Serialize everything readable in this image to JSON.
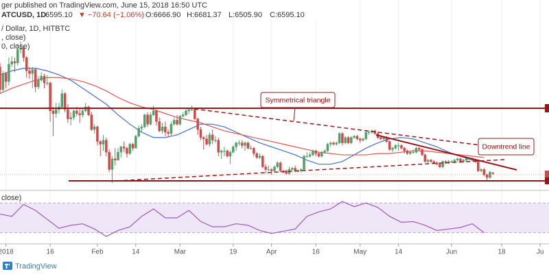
{
  "chart_data": {
    "type": "candlestick",
    "title": "ger published on TradingView.com, June 15, 2018 16:50 UTC",
    "symbol": "ATCUSD, 1D",
    "last": "6595.10",
    "change": "▼ −70.64 (−1.06%)",
    "ohlc_labels": [
      "O:6666.90",
      "H:6681.37",
      "L:6505.90",
      "C:6595.10"
    ],
    "legend": [
      "/ Dollar, 1D, HITBTC",
      ", close)",
      "0, close)"
    ],
    "annotations": [
      "Symmetrical triangle",
      "Downtrend line"
    ],
    "brand": "TradingView",
    "up_color": "#53a06a",
    "down_color": "#d04a4a",
    "xlim": [
      "2017-12-30",
      "2018-07-04"
    ],
    "ylim": [
      5330,
      19620
    ],
    "xticks": [
      {
        "value": "2018-01-01",
        "label": "2018"
      },
      {
        "value": "2018-01-16",
        "label": "16"
      },
      {
        "value": "2018-02-01",
        "label": "Feb"
      },
      {
        "value": "2018-02-14",
        "label": "14"
      },
      {
        "value": "2018-03-01",
        "label": "Mar"
      },
      {
        "value": "2018-03-19",
        "label": "19"
      },
      {
        "value": "2018-04-01",
        "label": "Apr"
      },
      {
        "value": "2018-04-16",
        "label": "16"
      },
      {
        "value": "2018-05-01",
        "label": "May"
      },
      {
        "value": "2018-05-14",
        "label": "14"
      },
      {
        "value": "2018-06-01",
        "label": "Jun"
      },
      {
        "value": "2018-06-18",
        "label": "18"
      },
      {
        "value": "2018-07-01",
        "label": "Ju"
      }
    ],
    "grid": true,
    "x": [
      "2017-12-30",
      "2017-12-31",
      "2018-01-01",
      "2018-01-02",
      "2018-01-03",
      "2018-01-04",
      "2018-01-05",
      "2018-01-06",
      "2018-01-07",
      "2018-01-08",
      "2018-01-09",
      "2018-01-10",
      "2018-01-11",
      "2018-01-12",
      "2018-01-13",
      "2018-01-14",
      "2018-01-15",
      "2018-01-16",
      "2018-01-17",
      "2018-01-18",
      "2018-01-19",
      "2018-01-20",
      "2018-01-21",
      "2018-01-22",
      "2018-01-23",
      "2018-01-24",
      "2018-01-25",
      "2018-01-26",
      "2018-01-27",
      "2018-01-28",
      "2018-01-29",
      "2018-01-30",
      "2018-01-31",
      "2018-02-01",
      "2018-02-02",
      "2018-02-03",
      "2018-02-04",
      "2018-02-05",
      "2018-02-06",
      "2018-02-07",
      "2018-02-08",
      "2018-02-09",
      "2018-02-10",
      "2018-02-11",
      "2018-02-12",
      "2018-02-13",
      "2018-02-14",
      "2018-02-15",
      "2018-02-16",
      "2018-02-17",
      "2018-02-18",
      "2018-02-19",
      "2018-02-20",
      "2018-02-21",
      "2018-02-22",
      "2018-02-23",
      "2018-02-24",
      "2018-02-25",
      "2018-02-26",
      "2018-02-27",
      "2018-02-28",
      "2018-03-01",
      "2018-03-02",
      "2018-03-03",
      "2018-03-04",
      "2018-03-05",
      "2018-03-06",
      "2018-03-07",
      "2018-03-08",
      "2018-03-09",
      "2018-03-10",
      "2018-03-11",
      "2018-03-12",
      "2018-03-13",
      "2018-03-14",
      "2018-03-15",
      "2018-03-16",
      "2018-03-17",
      "2018-03-18",
      "2018-03-19",
      "2018-03-20",
      "2018-03-21",
      "2018-03-22",
      "2018-03-23",
      "2018-03-24",
      "2018-03-25",
      "2018-03-26",
      "2018-03-27",
      "2018-03-28",
      "2018-03-29",
      "2018-03-30",
      "2018-03-31",
      "2018-04-01",
      "2018-04-02",
      "2018-04-03",
      "2018-04-04",
      "2018-04-05",
      "2018-04-06",
      "2018-04-07",
      "2018-04-08",
      "2018-04-09",
      "2018-04-10",
      "2018-04-11",
      "2018-04-12",
      "2018-04-13",
      "2018-04-14",
      "2018-04-15",
      "2018-04-16",
      "2018-04-17",
      "2018-04-18",
      "2018-04-19",
      "2018-04-20",
      "2018-04-21",
      "2018-04-22",
      "2018-04-23",
      "2018-04-24",
      "2018-04-25",
      "2018-04-26",
      "2018-04-27",
      "2018-04-28",
      "2018-04-29",
      "2018-04-30",
      "2018-05-01",
      "2018-05-02",
      "2018-05-03",
      "2018-05-04",
      "2018-05-05",
      "2018-05-06",
      "2018-05-07",
      "2018-05-08",
      "2018-05-09",
      "2018-05-10",
      "2018-05-11",
      "2018-05-12",
      "2018-05-13",
      "2018-05-14",
      "2018-05-15",
      "2018-05-16",
      "2018-05-17",
      "2018-05-18",
      "2018-05-19",
      "2018-05-20",
      "2018-05-21",
      "2018-05-22",
      "2018-05-23",
      "2018-05-24",
      "2018-05-25",
      "2018-05-26",
      "2018-05-27",
      "2018-05-28",
      "2018-05-29",
      "2018-05-30",
      "2018-05-31",
      "2018-06-01",
      "2018-06-02",
      "2018-06-03",
      "2018-06-04",
      "2018-06-05",
      "2018-06-06",
      "2018-06-07",
      "2018-06-08",
      "2018-06-09",
      "2018-06-10",
      "2018-06-11",
      "2018-06-12",
      "2018-06-13",
      "2018-06-14",
      "2018-06-15"
    ],
    "open": [
      14600,
      12900,
      14100,
      13500,
      14800,
      15000,
      14900,
      15900,
      16000,
      15300,
      14300,
      14100,
      14400,
      13100,
      13600,
      13900,
      13400,
      13400,
      11300,
      11100,
      11400,
      11600,
      12600,
      11400,
      10700,
      10800,
      11300,
      11100,
      11000,
      11300,
      11600,
      11000,
      9900,
      10100,
      9000,
      8800,
      9100,
      8200,
      6900,
      7700,
      7600,
      8200,
      8600,
      8500,
      8100,
      8800,
      8500,
      9400,
      10000,
      10100,
      11000,
      10300,
      11000,
      11300,
      10500,
      9800,
      10100,
      9700,
      9600,
      10300,
      10600,
      10300,
      10900,
      11000,
      11300,
      11400,
      11400,
      10700,
      9900,
      9300,
      9200,
      8800,
      9500,
      9100,
      9100,
      8200,
      8300,
      8300,
      7900,
      8200,
      8600,
      8900,
      8900,
      8700,
      8900,
      8500,
      8500,
      8100,
      7800,
      7900,
      7100,
      6900,
      6900,
      6800,
      7100,
      7400,
      6800,
      6800,
      6600,
      6900,
      7000,
      6800,
      6800,
      6900,
      7900,
      7900,
      8000,
      8300,
      8100,
      7900,
      8200,
      8300,
      8800,
      8900,
      8800,
      8900,
      9600,
      8900,
      9300,
      8900,
      9300,
      9400,
      9200,
      9100,
      9200,
      9700,
      9700,
      9800,
      9600,
      9300,
      9200,
      9300,
      9000,
      8400,
      8500,
      8700,
      8700,
      8500,
      8300,
      8100,
      8200,
      8200,
      8500,
      8400,
      8000,
      7500,
      7600,
      7500,
      7400,
      7300,
      7100,
      7500,
      7400,
      7500,
      7500,
      7600,
      7700,
      7500,
      7600,
      7700,
      7700,
      7600,
      7500,
      6800,
      6900,
      6500,
      6300,
      6666.9
    ],
    "high": [
      14900,
      14300,
      14200,
      15300,
      15400,
      15300,
      16300,
      16500,
      16200,
      15400,
      14600,
      14600,
      14500,
      13900,
      14200,
      14100,
      14000,
      13500,
      11600,
      11900,
      11900,
      12900,
      12700,
      11800,
      11200,
      11400,
      11600,
      11500,
      11500,
      11900,
      11700,
      11200,
      10300,
      10200,
      9100,
      9500,
      9300,
      8400,
      7900,
      8500,
      8500,
      8700,
      9000,
      8600,
      8900,
      8900,
      9500,
      10200,
      10300,
      11100,
      11200,
      11200,
      11700,
      11400,
      10800,
      10400,
      10500,
      9900,
      10500,
      10800,
      11000,
      11000,
      11200,
      11500,
      11500,
      11700,
      11500,
      10800,
      10100,
      9400,
      9500,
      9700,
      9900,
      9400,
      9300,
      8400,
      8600,
      8400,
      8300,
      8700,
      9000,
      9100,
      9100,
      9000,
      9000,
      8700,
      8600,
      8200,
      8100,
      8000,
      7300,
      7200,
      7000,
      7200,
      7500,
      7500,
      6900,
      6900,
      7100,
      7100,
      7200,
      6900,
      7000,
      8000,
      8200,
      8200,
      8400,
      8400,
      8200,
      8300,
      8400,
      8900,
      9000,
      9000,
      9000,
      9700,
      9700,
      9400,
      9400,
      9400,
      9500,
      9500,
      9300,
      9300,
      9800,
      9800,
      9900,
      9900,
      9700,
      9500,
      9400,
      9400,
      9100,
      8600,
      8800,
      8900,
      8800,
      8600,
      8400,
      8300,
      8400,
      8600,
      8600,
      8500,
      8100,
      7700,
      7700,
      7600,
      7500,
      7400,
      7600,
      7600,
      7600,
      7600,
      7700,
      7800,
      7800,
      7700,
      7800,
      7800,
      7800,
      7700,
      7600,
      7000,
      7000,
      6600,
      6800,
      6681.37
    ],
    "low": [
      12600,
      12700,
      13000,
      13200,
      14600,
      14200,
      14700,
      15600,
      15000,
      13800,
      13700,
      13000,
      12700,
      12900,
      13500,
      13000,
      13200,
      10500,
      9400,
      10800,
      11100,
      11500,
      11200,
      10400,
      10200,
      10600,
      10900,
      10400,
      10800,
      11200,
      10900,
      9800,
      9600,
      8700,
      7900,
      8300,
      7900,
      6700,
      5900,
      7200,
      7600,
      7800,
      8200,
      7800,
      8000,
      8300,
      8500,
      9300,
      9700,
      10000,
      10100,
      10200,
      10900,
      10200,
      9700,
      9600,
      9400,
      9300,
      9400,
      10200,
      10200,
      10200,
      10800,
      10900,
      11100,
      11300,
      10600,
      9500,
      9100,
      8400,
      8700,
      8600,
      8800,
      8900,
      7900,
      7700,
      7900,
      7800,
      7300,
      8100,
      8300,
      8700,
      8500,
      8300,
      8400,
      8400,
      7900,
      7700,
      7700,
      7000,
      6600,
      6800,
      6500,
      6700,
      7000,
      6700,
      6600,
      6500,
      6500,
      6800,
      6700,
      6700,
      6700,
      6800,
      7800,
      7800,
      7900,
      7900,
      7800,
      7800,
      8100,
      8200,
      8600,
      8700,
      8700,
      8800,
      8700,
      8800,
      8800,
      8800,
      9200,
      9100,
      8900,
      9000,
      9100,
      9500,
      9600,
      9500,
      9200,
      9100,
      9000,
      8900,
      8300,
      8200,
      8400,
      8300,
      8400,
      8100,
      8000,
      8000,
      8100,
      8100,
      8300,
      7900,
      7400,
      7300,
      7400,
      7300,
      7200,
      7000,
      7000,
      7300,
      7300,
      7400,
      7400,
      7500,
      7400,
      7400,
      7500,
      7600,
      7500,
      7400,
      6700,
      6700,
      6400,
      6100,
      6200,
      6505.9
    ],
    "close": [
      12900,
      14100,
      13500,
      14800,
      15000,
      14900,
      15900,
      16000,
      15300,
      14300,
      14100,
      14400,
      13100,
      13600,
      13900,
      13400,
      13400,
      11300,
      11100,
      11400,
      11600,
      12600,
      11400,
      10700,
      10800,
      11300,
      11100,
      11000,
      11300,
      11600,
      11000,
      9900,
      10100,
      9000,
      8800,
      9100,
      8200,
      6900,
      7700,
      7600,
      8200,
      8600,
      8500,
      8100,
      8800,
      8500,
      9400,
      10000,
      10100,
      11000,
      10300,
      11000,
      11300,
      10500,
      9800,
      10100,
      9700,
      9600,
      10300,
      10600,
      10300,
      10900,
      11000,
      11300,
      11400,
      11400,
      10700,
      9900,
      9300,
      9200,
      8800,
      9500,
      9100,
      9100,
      8200,
      8300,
      8300,
      7900,
      8200,
      8600,
      8900,
      8900,
      8700,
      8900,
      8500,
      8500,
      8100,
      7800,
      7900,
      7100,
      6900,
      6900,
      6800,
      7100,
      7400,
      6800,
      6800,
      6600,
      6900,
      7000,
      6800,
      6800,
      6900,
      7900,
      7900,
      8000,
      8300,
      8100,
      7900,
      8200,
      8300,
      8800,
      8900,
      8800,
      8900,
      9600,
      8900,
      9300,
      8900,
      9300,
      9400,
      9200,
      9100,
      9200,
      9700,
      9700,
      9800,
      9600,
      9300,
      9200,
      9300,
      9000,
      8400,
      8500,
      8700,
      8700,
      8500,
      8300,
      8100,
      8200,
      8200,
      8500,
      8400,
      8000,
      7500,
      7600,
      7500,
      7400,
      7300,
      7100,
      7500,
      7400,
      7500,
      7500,
      7600,
      7700,
      7500,
      7600,
      7700,
      7700,
      7600,
      7500,
      6800,
      6900,
      6500,
      6300,
      6700,
      6595.1
    ],
    "overlays": {
      "x": [
        "2017-12-30",
        "2018-01-03",
        "2018-01-07",
        "2018-01-11",
        "2018-01-15",
        "2018-01-19",
        "2018-01-23",
        "2018-01-27",
        "2018-01-31",
        "2018-02-04",
        "2018-02-08",
        "2018-02-12",
        "2018-02-16",
        "2018-02-20",
        "2018-02-24",
        "2018-02-28",
        "2018-03-04",
        "2018-03-08",
        "2018-03-12",
        "2018-03-16",
        "2018-03-20",
        "2018-03-24",
        "2018-03-28",
        "2018-04-01",
        "2018-04-05",
        "2018-04-09",
        "2018-04-13",
        "2018-04-17",
        "2018-04-21",
        "2018-04-25",
        "2018-04-29",
        "2018-05-03",
        "2018-05-07",
        "2018-05-11",
        "2018-05-15",
        "2018-05-19",
        "2018-05-23",
        "2018-05-27",
        "2018-05-31",
        "2018-06-04",
        "2018-06-08",
        "2018-06-12"
      ],
      "ma": [
        {
          "color": "#3f6fd8",
          "values": [
            14000,
            14300,
            14500,
            14500,
            14300,
            14000,
            13600,
            13000,
            12400,
            11800,
            11000,
            10300,
            9700,
            9300,
            9300,
            9500,
            9900,
            10300,
            10300,
            10100,
            9700,
            9300,
            8900,
            8600,
            8300,
            8000,
            7600,
            7300,
            7300,
            7500,
            8000,
            8500,
            8900,
            9200,
            9300,
            9200,
            8900,
            8600,
            8200,
            7900,
            7600,
            7500
          ]
        },
        {
          "color": "#e5544f",
          "values": [
            12600,
            13000,
            13300,
            13600,
            13800,
            13800,
            13700,
            13500,
            13200,
            12800,
            12300,
            11900,
            11600,
            11400,
            11100,
            10800,
            10600,
            10400,
            10100,
            9800,
            9600,
            9400,
            9200,
            9000,
            8800,
            8600,
            8400,
            8200,
            8100,
            8000,
            8000,
            8000,
            8100,
            8100,
            8200,
            8300,
            8300,
            8200,
            8100,
            8000,
            7900,
            7800
          ]
        }
      ],
      "rsi": {
        "label": "close)",
        "color": "#9b59c6",
        "band_color": "#efe6f8",
        "ylim": [
          15,
          85
        ],
        "levels": [
          30,
          70
        ],
        "values": [
          55,
          52,
          68,
          60,
          48,
          36,
          40,
          42,
          35,
          25,
          33,
          38,
          52,
          62,
          50,
          50,
          60,
          45,
          38,
          38,
          42,
          40,
          33,
          29,
          32,
          35,
          52,
          58,
          62,
          72,
          65,
          70,
          64,
          52,
          44,
          45,
          40,
          33,
          35,
          37,
          42,
          30
        ]
      }
    }
  }
}
